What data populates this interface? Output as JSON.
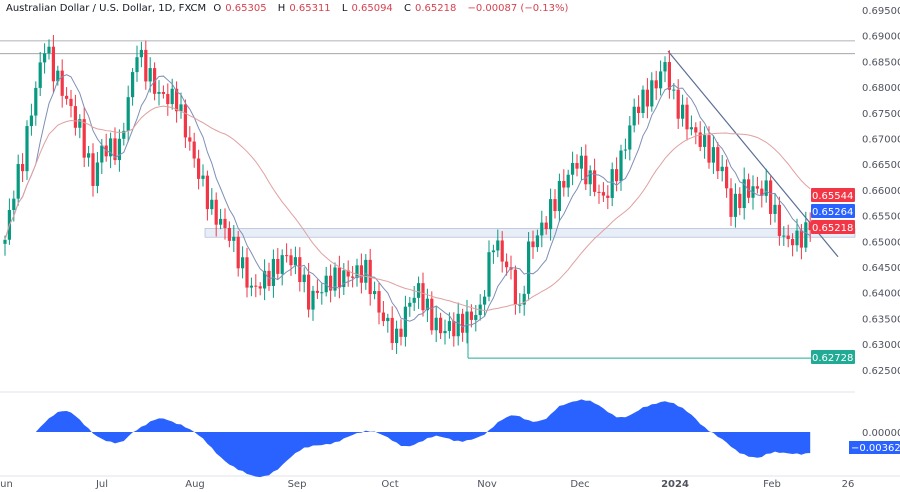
{
  "header": {
    "symbol": "Australian Dollar / U.S. Dollar, 1D, FXCM",
    "open_label": "O",
    "open": "0.65305",
    "high_label": "H",
    "high": "0.65311",
    "low_label": "L",
    "low": "0.65094",
    "close_label": "C",
    "close": "0.65218",
    "change": "−0.00087 (−0.13%)"
  },
  "chart_data": {
    "type": "candlestick",
    "y_ticks": [
      "0.69500",
      "0.69000",
      "0.68500",
      "0.68000",
      "0.67500",
      "0.67000",
      "0.66500",
      "0.66000",
      "0.65500",
      "0.65000",
      "0.64500",
      "0.64000",
      "0.63500",
      "0.63000",
      "0.62500"
    ],
    "ylim": [
      0.624,
      0.697
    ],
    "x_ticks": [
      "Jun",
      "Jul",
      "Aug",
      "Sep",
      "Oct",
      "Nov",
      "Dec",
      "2024",
      "Feb",
      "26"
    ],
    "close_keypoints": [
      [
        0,
        0.6503
      ],
      [
        2,
        0.66
      ],
      [
        4,
        0.6658
      ],
      [
        6,
        0.6755
      ],
      [
        9,
        0.6882
      ],
      [
        11,
        0.6833
      ],
      [
        14,
        0.6775
      ],
      [
        17,
        0.6717
      ],
      [
        20,
        0.662
      ],
      [
        22,
        0.668
      ],
      [
        26,
        0.668
      ],
      [
        30,
        0.6872
      ],
      [
        32,
        0.6833
      ],
      [
        35,
        0.6785
      ],
      [
        39,
        0.6775
      ],
      [
        41,
        0.6717
      ],
      [
        43,
        0.6658
      ],
      [
        47,
        0.656
      ],
      [
        51,
        0.6512
      ],
      [
        56,
        0.6405
      ],
      [
        59,
        0.6425
      ],
      [
        64,
        0.6473
      ],
      [
        67,
        0.6442
      ],
      [
        69,
        0.6385
      ],
      [
        74,
        0.6425
      ],
      [
        78,
        0.6434
      ],
      [
        82,
        0.6442
      ],
      [
        85,
        0.6365
      ],
      [
        89,
        0.6308
      ],
      [
        92,
        0.6385
      ],
      [
        94,
        0.6405
      ],
      [
        97,
        0.6347
      ],
      [
        99,
        0.6327
      ],
      [
        103,
        0.6337
      ],
      [
        108,
        0.6365
      ],
      [
        111,
        0.6503
      ],
      [
        115,
        0.6434
      ],
      [
        117,
        0.6355
      ],
      [
        119,
        0.6483
      ],
      [
        123,
        0.6541
      ],
      [
        126,
        0.66
      ],
      [
        130,
        0.6658
      ],
      [
        133,
        0.662
      ],
      [
        136,
        0.6581
      ],
      [
        140,
        0.6658
      ],
      [
        143,
        0.6755
      ],
      [
        147,
        0.6794
      ],
      [
        150,
        0.6843
      ],
      [
        152,
        0.6775
      ],
      [
        156,
        0.6717
      ],
      [
        159,
        0.6687
      ],
      [
        163,
        0.6639
      ],
      [
        165,
        0.656
      ],
      [
        168,
        0.66
      ],
      [
        173,
        0.66
      ],
      [
        175,
        0.655
      ],
      [
        177,
        0.6503
      ],
      [
        180,
        0.6503
      ],
      [
        183,
        0.6522
      ]
    ],
    "horizontal_levels": [
      0.689,
      0.6865,
      0.6525,
      0.6508,
      0.62728
    ],
    "trendline": [
      [
        0.687
      ],
      [
        0.647
      ]
    ],
    "price_labels": [
      {
        "value": "0.65544",
        "color": "#f23645"
      },
      {
        "value": "0.65264",
        "color": "#2962ff"
      },
      {
        "value": "0.65218",
        "color": "#f23645"
      },
      {
        "value": "0.62728",
        "color": "#22ab94"
      }
    ],
    "oscillator": {
      "zero_label": "0.00000",
      "current": "−0.00362",
      "color": "#2962ff"
    },
    "colors": {
      "up": "#089981",
      "down": "#f23645",
      "ma_fast": "#7f8fb5",
      "ma_slow": "#e0a0a0"
    }
  }
}
